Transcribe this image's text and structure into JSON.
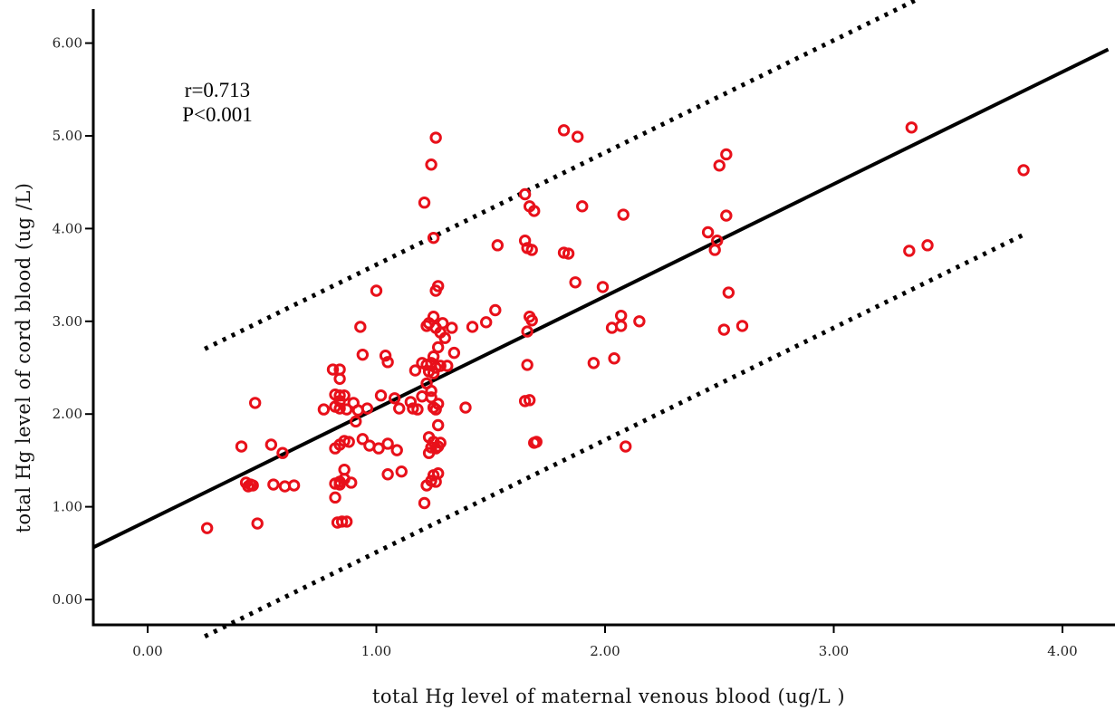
{
  "chart_data": {
    "type": "scatter",
    "title": "",
    "xlabel": "total Hg level of maternal venous blood (ug/L )",
    "ylabel": "total Hg level of cord blood (ug /L)",
    "xlim": [
      -0.25,
      4.2
    ],
    "ylim": [
      -0.3,
      6.3
    ],
    "x_ticks": [
      "0.00",
      "1.00",
      "2.00",
      "3.00",
      "4.00"
    ],
    "y_ticks": [
      "0.00",
      "1.00",
      "2.00",
      "3.00",
      "4.00",
      "5.00",
      "6.00"
    ],
    "annotations": [
      "r=0.713",
      "P<0.001"
    ],
    "regression": {
      "slope": 1.21,
      "intercept": 0.85
    },
    "prediction_band_offset": 1.55,
    "band_x_range": [
      0.25,
      3.83
    ],
    "marker_color": "#e8101a",
    "line_color": "#000000",
    "points": [
      [
        0.26,
        0.77
      ],
      [
        0.41,
        1.65
      ],
      [
        0.43,
        1.26
      ],
      [
        0.44,
        1.22
      ],
      [
        0.45,
        1.24
      ],
      [
        0.46,
        1.23
      ],
      [
        0.47,
        2.12
      ],
      [
        0.48,
        0.82
      ],
      [
        0.54,
        1.67
      ],
      [
        0.55,
        1.24
      ],
      [
        0.59,
        1.58
      ],
      [
        0.6,
        1.22
      ],
      [
        0.64,
        1.23
      ],
      [
        0.77,
        2.05
      ],
      [
        0.81,
        2.48
      ],
      [
        0.82,
        2.21
      ],
      [
        0.82,
        2.08
      ],
      [
        0.82,
        1.63
      ],
      [
        0.82,
        1.25
      ],
      [
        0.82,
        1.1
      ],
      [
        0.83,
        0.83
      ],
      [
        0.84,
        2.48
      ],
      [
        0.84,
        2.38
      ],
      [
        0.84,
        2.2
      ],
      [
        0.84,
        2.14
      ],
      [
        0.84,
        2.06
      ],
      [
        0.84,
        1.67
      ],
      [
        0.84,
        1.27
      ],
      [
        0.84,
        1.24
      ],
      [
        0.85,
        0.84
      ],
      [
        0.86,
        2.2
      ],
      [
        0.86,
        1.71
      ],
      [
        0.86,
        1.4
      ],
      [
        0.86,
        1.3
      ],
      [
        0.87,
        0.84
      ],
      [
        0.87,
        2.05
      ],
      [
        0.88,
        1.7
      ],
      [
        0.89,
        1.26
      ],
      [
        0.9,
        2.12
      ],
      [
        0.91,
        1.92
      ],
      [
        0.92,
        2.04
      ],
      [
        0.93,
        2.94
      ],
      [
        0.94,
        1.73
      ],
      [
        0.94,
        2.64
      ],
      [
        0.96,
        2.06
      ],
      [
        0.97,
        1.66
      ],
      [
        1.0,
        3.33
      ],
      [
        1.01,
        1.63
      ],
      [
        1.02,
        2.2
      ],
      [
        1.04,
        2.63
      ],
      [
        1.05,
        2.56
      ],
      [
        1.05,
        1.68
      ],
      [
        1.05,
        1.35
      ],
      [
        1.08,
        2.17
      ],
      [
        1.09,
        1.61
      ],
      [
        1.1,
        2.06
      ],
      [
        1.11,
        1.38
      ],
      [
        1.15,
        2.13
      ],
      [
        1.16,
        2.06
      ],
      [
        1.17,
        2.47
      ],
      [
        1.18,
        2.05
      ],
      [
        1.2,
        2.55
      ],
      [
        1.2,
        2.19
      ],
      [
        1.21,
        4.28
      ],
      [
        1.21,
        1.04
      ],
      [
        1.22,
        2.95
      ],
      [
        1.22,
        2.53
      ],
      [
        1.22,
        2.33
      ],
      [
        1.22,
        1.23
      ],
      [
        1.23,
        2.98
      ],
      [
        1.23,
        2.46
      ],
      [
        1.23,
        1.75
      ],
      [
        1.23,
        1.58
      ],
      [
        1.24,
        4.69
      ],
      [
        1.24,
        2.55
      ],
      [
        1.24,
        2.25
      ],
      [
        1.24,
        2.18
      ],
      [
        1.24,
        1.64
      ],
      [
        1.24,
        1.28
      ],
      [
        1.25,
        3.9
      ],
      [
        1.25,
        3.05
      ],
      [
        1.25,
        2.62
      ],
      [
        1.25,
        2.44
      ],
      [
        1.25,
        2.07
      ],
      [
        1.25,
        1.7
      ],
      [
        1.25,
        1.34
      ],
      [
        1.26,
        4.98
      ],
      [
        1.26,
        3.33
      ],
      [
        1.26,
        2.93
      ],
      [
        1.26,
        2.5
      ],
      [
        1.26,
        2.05
      ],
      [
        1.26,
        1.63
      ],
      [
        1.26,
        1.27
      ],
      [
        1.27,
        3.38
      ],
      [
        1.27,
        2.72
      ],
      [
        1.27,
        2.11
      ],
      [
        1.27,
        1.88
      ],
      [
        1.27,
        1.65
      ],
      [
        1.27,
        1.36
      ],
      [
        1.28,
        2.88
      ],
      [
        1.28,
        2.52
      ],
      [
        1.28,
        1.69
      ],
      [
        1.29,
        2.98
      ],
      [
        1.3,
        2.82
      ],
      [
        1.31,
        2.52
      ],
      [
        1.33,
        2.93
      ],
      [
        1.34,
        2.66
      ],
      [
        1.39,
        2.07
      ],
      [
        1.42,
        2.94
      ],
      [
        1.48,
        2.99
      ],
      [
        1.52,
        3.12
      ],
      [
        1.53,
        3.82
      ],
      [
        1.65,
        4.37
      ],
      [
        1.65,
        3.87
      ],
      [
        1.65,
        2.14
      ],
      [
        1.66,
        3.79
      ],
      [
        1.66,
        2.89
      ],
      [
        1.66,
        2.53
      ],
      [
        1.67,
        4.24
      ],
      [
        1.67,
        3.05
      ],
      [
        1.67,
        2.15
      ],
      [
        1.68,
        3.77
      ],
      [
        1.68,
        3.01
      ],
      [
        1.69,
        4.19
      ],
      [
        1.69,
        1.69
      ],
      [
        1.7,
        1.7
      ],
      [
        1.82,
        5.06
      ],
      [
        1.82,
        3.74
      ],
      [
        1.84,
        3.73
      ],
      [
        1.87,
        3.42
      ],
      [
        1.88,
        4.99
      ],
      [
        1.9,
        4.24
      ],
      [
        1.95,
        2.55
      ],
      [
        1.99,
        3.37
      ],
      [
        2.03,
        2.93
      ],
      [
        2.04,
        2.6
      ],
      [
        2.07,
        3.06
      ],
      [
        2.07,
        2.95
      ],
      [
        2.08,
        4.15
      ],
      [
        2.09,
        1.65
      ],
      [
        2.15,
        3.0
      ],
      [
        2.45,
        3.96
      ],
      [
        2.48,
        3.77
      ],
      [
        2.49,
        3.87
      ],
      [
        2.5,
        4.68
      ],
      [
        2.52,
        2.91
      ],
      [
        2.53,
        4.14
      ],
      [
        2.53,
        4.8
      ],
      [
        2.54,
        3.31
      ],
      [
        2.6,
        2.95
      ],
      [
        3.33,
        3.76
      ],
      [
        3.34,
        5.09
      ],
      [
        3.41,
        3.82
      ],
      [
        3.83,
        4.63
      ]
    ]
  }
}
